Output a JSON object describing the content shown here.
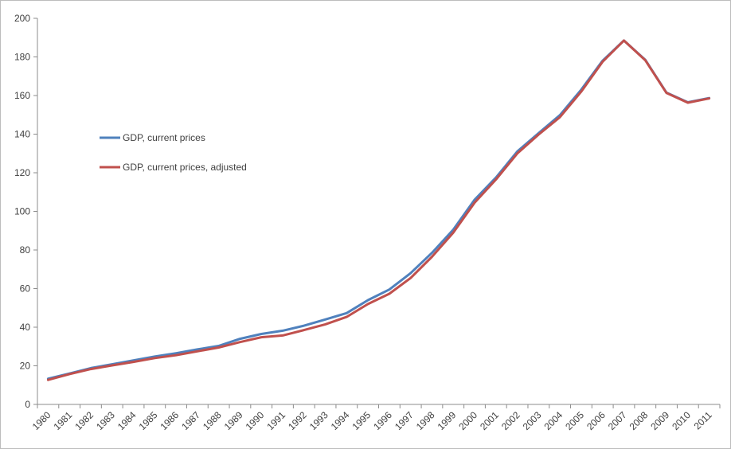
{
  "chart_data": {
    "type": "line",
    "title": "",
    "xlabel": "",
    "ylabel": "",
    "ylim": [
      0,
      200
    ],
    "yticks": [
      0,
      20,
      40,
      60,
      80,
      100,
      120,
      140,
      160,
      180,
      200
    ],
    "ytick_labels": [
      "0",
      "20",
      "40",
      "60",
      "80",
      "100",
      "120",
      "140",
      "160",
      "180",
      "200"
    ],
    "grid": false,
    "legend_position": "left-middle",
    "categories": [
      "1980",
      "1981",
      "1982",
      "1983",
      "1984",
      "1985",
      "1986",
      "1987",
      "1988",
      "1989",
      "1990",
      "1991",
      "1992",
      "1993",
      "1994",
      "1995",
      "1996",
      "1997",
      "1998",
      "1999",
      "2000",
      "2001",
      "2002",
      "2003",
      "2004",
      "2005",
      "2006",
      "2007",
      "2008",
      "2009",
      "2010",
      "2011"
    ],
    "series": [
      {
        "name": "GDP, current prices",
        "color": "#4f81bd",
        "values": [
          13.3,
          16.0,
          18.8,
          20.8,
          22.8,
          24.8,
          26.5,
          28.5,
          30.3,
          34.0,
          36.5,
          38.2,
          40.8,
          44.0,
          47.3,
          54.0,
          59.5,
          68.0,
          78.5,
          90.5,
          106.0,
          117.5,
          131.0,
          140.5,
          149.8,
          163.0,
          178.0,
          188.5,
          178.5,
          161.5,
          156.5,
          158.7
        ]
      },
      {
        "name": "GDP, current prices, adjusted",
        "color": "#c0504d",
        "values": [
          12.7,
          15.7,
          18.3,
          20.2,
          22.0,
          24.0,
          25.5,
          27.5,
          29.5,
          32.3,
          34.8,
          35.7,
          38.5,
          41.5,
          45.3,
          52.0,
          57.3,
          65.5,
          76.5,
          89.0,
          104.5,
          116.5,
          130.0,
          139.8,
          148.8,
          162.0,
          177.5,
          188.5,
          178.3,
          161.3,
          156.3,
          158.5
        ]
      }
    ]
  }
}
